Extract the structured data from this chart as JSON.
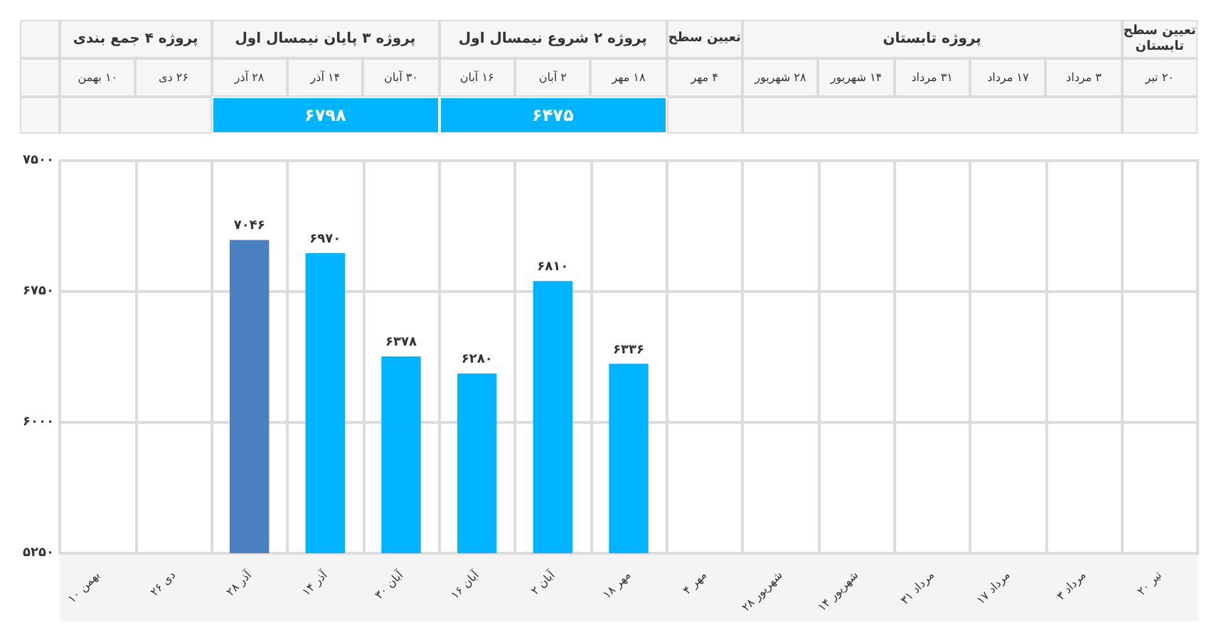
{
  "chart_data": {
    "type": "bar",
    "categories": [
      "۱۰ بهمن",
      "۲۶ دی",
      "۲۸ آذر",
      "۱۴ آذر",
      "۳۰ آبان",
      "۱۶ آبان",
      "۲ آبان",
      "۱۸ مهر",
      "۴ مهر",
      "۲۸ شهریور",
      "۱۴ شهریور",
      "۳۱ مرداد",
      "۱۷ مرداد",
      "۳ مرداد",
      "۲۰ تیر"
    ],
    "values": [
      null,
      null,
      7046,
      6970,
      6378,
      6280,
      6810,
      6336,
      null,
      null,
      null,
      null,
      null,
      null,
      null
    ],
    "colors": [
      "#00b4ff",
      "#00b4ff",
      "#4a80c2",
      "#00b4ff",
      "#00b4ff",
      "#00b4ff",
      "#00b4ff",
      "#00b4ff",
      "#00b4ff",
      "#00b4ff",
      "#00b4ff",
      "#00b4ff",
      "#00b4ff",
      "#00b4ff",
      "#00b4ff"
    ],
    "value_labels": [
      null,
      null,
      "۷۰۴۶",
      "۶۹۷۰",
      "۶۳۷۸",
      "۶۲۸۰",
      "۶۸۱۰",
      "۶۳۳۶",
      null,
      null,
      null,
      null,
      null,
      null,
      null
    ],
    "ylim": [
      5250,
      7500
    ],
    "yticks": [
      {
        "value": 5250,
        "label": "۵۲۵۰"
      },
      {
        "value": 6000,
        "label": "۶۰۰۰"
      },
      {
        "value": 6750,
        "label": "۶۷۵۰"
      },
      {
        "value": 7500,
        "label": "۷۵۰۰"
      }
    ],
    "grid": true,
    "annotations": [
      "پروژه ۴ جمع بندی",
      "پروژه ۳ پایان نیمسال اول",
      "پروژه ۲ شروع نیمسال اول",
      "تعیین سطح",
      "پروژه تابستان",
      "تعیین سطح تابستان",
      "۶۷۹۸",
      "۶۴۷۵"
    ]
  }
}
